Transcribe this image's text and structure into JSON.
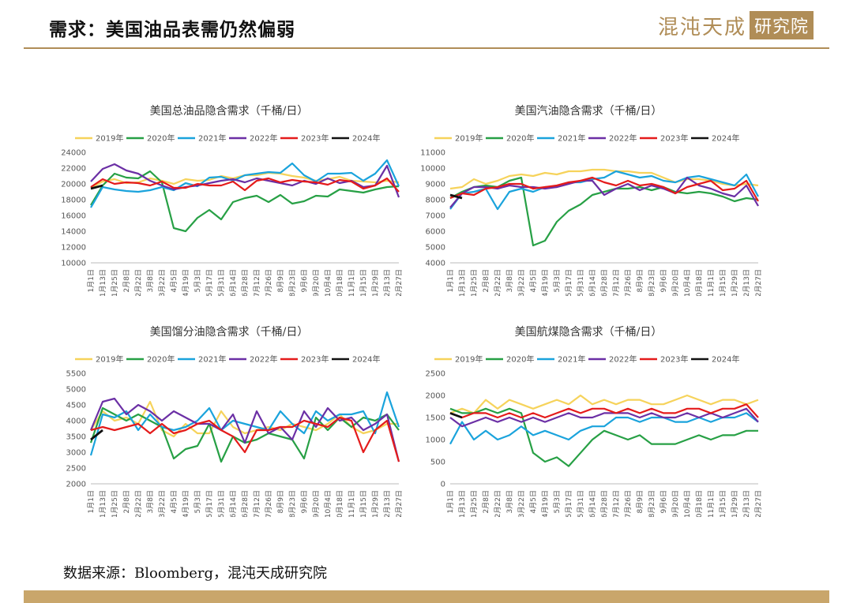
{
  "header": {
    "title": "需求：美国油品表需仍然偏弱",
    "logo_text": "混沌天成",
    "logo_box": "研究院"
  },
  "footer": {
    "source": "数据来源：Bloomberg，混沌天成研究院"
  },
  "colors": {
    "accent": "#b08d57"
  },
  "chart_data": [
    {
      "type": "line",
      "title": "美国总油品隐含需求（千桶/日）",
      "categories": [
        "1月1日",
        "1月13日",
        "1月25日",
        "2月8日",
        "2月22日",
        "3月8日",
        "3月22日",
        "4月5日",
        "4月19日",
        "5月3日",
        "5月17日",
        "5月31日",
        "6月14日",
        "6月28日",
        "7月12日",
        "7月26日",
        "8月9日",
        "8月23日",
        "9月6日",
        "9月20日",
        "10月4日",
        "10月18日",
        "11月1日",
        "11月15日",
        "11月29日",
        "12月13日",
        "12月27日"
      ],
      "ylim": [
        10000,
        24000
      ],
      "yticks": [
        10000,
        12000,
        14000,
        16000,
        18000,
        20000,
        22000,
        24000
      ],
      "series": [
        {
          "name": "2019年",
          "color": "#f6d35b",
          "values": [
            19500,
            20300,
            20600,
            20100,
            20200,
            20700,
            20400,
            20000,
            20600,
            20400,
            20500,
            21000,
            20700,
            21100,
            21100,
            21400,
            21300,
            21000,
            20800,
            20400,
            20600,
            20900,
            20400,
            20300,
            20200,
            20400,
            20200
          ]
        },
        {
          "name": "2020年",
          "color": "#27a045",
          "values": [
            17300,
            19800,
            21300,
            20800,
            20700,
            21600,
            20200,
            14400,
            14000,
            15700,
            16700,
            15500,
            17700,
            18200,
            18500,
            17700,
            18600,
            17500,
            17800,
            18500,
            18400,
            19300,
            19100,
            18900,
            19300,
            19600,
            19700
          ]
        },
        {
          "name": "2021年",
          "color": "#1aa3dc",
          "values": [
            17000,
            19600,
            19300,
            19100,
            19000,
            19200,
            19600,
            19200,
            20100,
            19700,
            20800,
            20900,
            20400,
            21100,
            21300,
            21500,
            21400,
            22600,
            21100,
            20300,
            21300,
            21300,
            21400,
            20400,
            21300,
            23000,
            19700
          ]
        },
        {
          "name": "2022年",
          "color": "#6b2fa5",
          "values": [
            20300,
            21900,
            22500,
            21700,
            21300,
            20400,
            19800,
            19300,
            19600,
            19800,
            20100,
            20400,
            20600,
            20200,
            20700,
            20400,
            20100,
            19800,
            20400,
            20000,
            20700,
            20100,
            20400,
            19600,
            19800,
            22300,
            18300
          ]
        },
        {
          "name": "2023年",
          "color": "#e41b1b",
          "values": [
            19600,
            20600,
            20000,
            20200,
            20100,
            19800,
            20300,
            19500,
            19500,
            20000,
            19800,
            19800,
            20300,
            19200,
            20400,
            20700,
            20200,
            20500,
            20300,
            20200,
            19900,
            20500,
            20300,
            19400,
            19800,
            20700,
            19000
          ]
        },
        {
          "name": "2024年",
          "color": "#111111",
          "values": [
            19400,
            19800,
            null,
            null,
            null,
            null,
            null,
            null,
            null,
            null,
            null,
            null,
            null,
            null,
            null,
            null,
            null,
            null,
            null,
            null,
            null,
            null,
            null,
            null,
            null,
            null,
            null
          ]
        }
      ]
    },
    {
      "type": "line",
      "title": "美国汽油隐含需求（千桶/日）",
      "categories": [
        "1月1日",
        "1月13日",
        "1月25日",
        "2月8日",
        "2月22日",
        "3月8日",
        "3月22日",
        "4月5日",
        "4月19日",
        "5月3日",
        "5月17日",
        "5月31日",
        "6月14日",
        "6月28日",
        "7月12日",
        "7月26日",
        "8月9日",
        "8月23日",
        "9月6日",
        "9月20日",
        "10月4日",
        "10月18日",
        "11月1日",
        "11月15日",
        "11月29日",
        "12月13日",
        "12月27日"
      ],
      "ylim": [
        4000,
        11000
      ],
      "yticks": [
        4000,
        5000,
        6000,
        7000,
        8000,
        9000,
        10000,
        11000
      ],
      "series": [
        {
          "name": "2019年",
          "color": "#f6d35b",
          "values": [
            8700,
            8800,
            9300,
            9000,
            9200,
            9500,
            9600,
            9500,
            9700,
            9600,
            9800,
            9800,
            9900,
            9900,
            9800,
            9800,
            9700,
            9700,
            9400,
            9100,
            9300,
            9300,
            9200,
            9000,
            8900,
            9000,
            8900
          ]
        },
        {
          "name": "2020年",
          "color": "#27a045",
          "values": [
            8100,
            8500,
            8800,
            8900,
            8800,
            9200,
            9400,
            5100,
            5400,
            6600,
            7300,
            7700,
            8300,
            8500,
            8700,
            8700,
            8800,
            8600,
            8800,
            8500,
            8400,
            8500,
            8400,
            8200,
            7900,
            8100,
            8000
          ]
        },
        {
          "name": "2021年",
          "color": "#1aa3dc",
          "values": [
            7400,
            8400,
            8500,
            8700,
            7400,
            8500,
            8700,
            8500,
            8800,
            8800,
            9100,
            9100,
            9300,
            9400,
            9800,
            9600,
            9400,
            9500,
            9200,
            9100,
            9400,
            9500,
            9300,
            9100,
            8900,
            9600,
            8200
          ]
        },
        {
          "name": "2022年",
          "color": "#6b2fa5",
          "values": [
            7500,
            8400,
            8800,
            8800,
            8700,
            8900,
            8800,
            8800,
            8700,
            8800,
            9000,
            9200,
            9200,
            8300,
            8700,
            9000,
            8600,
            8900,
            8700,
            8400,
            9400,
            8900,
            8700,
            8400,
            8200,
            8900,
            7600
          ]
        },
        {
          "name": "2023年",
          "color": "#e41b1b",
          "values": [
            8100,
            8400,
            8300,
            8700,
            8800,
            9000,
            9000,
            8700,
            8800,
            8900,
            9100,
            9200,
            9400,
            9100,
            8900,
            9200,
            8900,
            9000,
            8800,
            8400,
            8800,
            9000,
            9200,
            8600,
            8700,
            9200,
            7900
          ]
        },
        {
          "name": "2024年",
          "color": "#111111",
          "values": [
            8300,
            8100,
            null,
            null,
            null,
            null,
            null,
            null,
            null,
            null,
            null,
            null,
            null,
            null,
            null,
            null,
            null,
            null,
            null,
            null,
            null,
            null,
            null,
            null,
            null,
            null,
            null
          ]
        }
      ]
    },
    {
      "type": "line",
      "title": "美国馏分油隐含需求（千桶/日）",
      "categories": [
        "1月1日",
        "1月13日",
        "1月25日",
        "2月8日",
        "2月22日",
        "3月8日",
        "3月22日",
        "4月5日",
        "4月19日",
        "5月3日",
        "5月17日",
        "5月31日",
        "6月14日",
        "6月28日",
        "7月12日",
        "7月26日",
        "8月9日",
        "8月23日",
        "9月6日",
        "9月20日",
        "10月4日",
        "10月18日",
        "11月1日",
        "11月15日",
        "11月29日",
        "12月13日",
        "12月27日"
      ],
      "ylim": [
        2000,
        5500
      ],
      "yticks": [
        2000,
        2500,
        3000,
        3500,
        4000,
        4500,
        5000,
        5500
      ],
      "series": [
        {
          "name": "2019年",
          "color": "#f6d35b",
          "values": [
            3700,
            4300,
            4000,
            4100,
            3900,
            4600,
            3700,
            3500,
            3900,
            3600,
            3600,
            4300,
            3800,
            3600,
            3700,
            3800,
            3700,
            3900,
            3800,
            3700,
            3900,
            4200,
            3800,
            3600,
            3700,
            3900,
            3900
          ]
        },
        {
          "name": "2020年",
          "color": "#27a045",
          "values": [
            3300,
            4400,
            4200,
            4000,
            4200,
            4000,
            3800,
            2800,
            3100,
            3200,
            3900,
            2700,
            3500,
            3300,
            3400,
            3600,
            3500,
            3400,
            2800,
            4100,
            3700,
            4100,
            3800,
            4100,
            4000,
            4200,
            3700
          ]
        },
        {
          "name": "2021年",
          "color": "#1aa3dc",
          "values": [
            2900,
            4200,
            4100,
            4300,
            3700,
            4200,
            3800,
            3700,
            3800,
            4000,
            4400,
            3700,
            4000,
            3900,
            3800,
            3700,
            4300,
            3900,
            3600,
            4300,
            4000,
            4200,
            4200,
            4300,
            3600,
            4900,
            3800
          ]
        },
        {
          "name": "2022年",
          "color": "#6b2fa5",
          "values": [
            3700,
            4600,
            4700,
            4200,
            4500,
            4300,
            4000,
            4300,
            4100,
            3900,
            3900,
            3700,
            4200,
            3300,
            4300,
            3600,
            3800,
            3400,
            4300,
            3800,
            4400,
            4000,
            4100,
            3700,
            3900,
            4200,
            2700
          ]
        },
        {
          "name": "2023年",
          "color": "#e41b1b",
          "values": [
            3700,
            3800,
            3700,
            3800,
            3900,
            3600,
            3900,
            3600,
            3700,
            3900,
            4000,
            3700,
            3500,
            3000,
            3700,
            3700,
            3800,
            3800,
            4000,
            3900,
            3800,
            4100,
            4000,
            3000,
            3700,
            4000,
            2700
          ]
        },
        {
          "name": "2024年",
          "color": "#111111",
          "values": [
            3400,
            3700,
            null,
            null,
            null,
            null,
            null,
            null,
            null,
            null,
            null,
            null,
            null,
            null,
            null,
            null,
            null,
            null,
            null,
            null,
            null,
            null,
            null,
            null,
            null,
            null,
            null
          ]
        }
      ]
    },
    {
      "type": "line",
      "title": "美国航煤隐含需求（千桶/日）",
      "categories": [
        "1月1日",
        "1月13日",
        "1月25日",
        "2月8日",
        "2月22日",
        "3月8日",
        "3月22日",
        "4月5日",
        "4月19日",
        "5月3日",
        "5月17日",
        "5月31日",
        "6月14日",
        "6月28日",
        "7月12日",
        "7月26日",
        "8月9日",
        "8月23日",
        "9月6日",
        "9月20日",
        "10月4日",
        "10月18日",
        "11月1日",
        "11月15日",
        "11月29日",
        "12月13日",
        "12月27日"
      ],
      "ylim": [
        0,
        2500
      ],
      "yticks": [
        0,
        500,
        1000,
        1500,
        2000,
        2500
      ],
      "series": [
        {
          "name": "2019年",
          "color": "#f6d35b",
          "values": [
            1600,
            1700,
            1600,
            1900,
            1700,
            1900,
            1800,
            1700,
            1800,
            1900,
            1800,
            2000,
            1800,
            1900,
            1800,
            1900,
            1900,
            1800,
            1800,
            1900,
            2000,
            1900,
            1800,
            1900,
            1900,
            1800,
            1900
          ]
        },
        {
          "name": "2020年",
          "color": "#27a045",
          "values": [
            1700,
            1600,
            1600,
            1700,
            1600,
            1700,
            1600,
            700,
            500,
            600,
            400,
            700,
            1000,
            1200,
            1100,
            1000,
            1100,
            900,
            900,
            900,
            1000,
            1100,
            1000,
            1100,
            1100,
            1200,
            1200
          ]
        },
        {
          "name": "2021年",
          "color": "#1aa3dc",
          "values": [
            900,
            1400,
            1000,
            1200,
            1000,
            1100,
            1300,
            1100,
            1200,
            1100,
            1000,
            1200,
            1300,
            1300,
            1500,
            1500,
            1400,
            1500,
            1500,
            1400,
            1400,
            1500,
            1400,
            1500,
            1500,
            1600,
            1400
          ]
        },
        {
          "name": "2022年",
          "color": "#6b2fa5",
          "values": [
            1500,
            1300,
            1400,
            1500,
            1400,
            1500,
            1400,
            1500,
            1400,
            1500,
            1600,
            1500,
            1500,
            1600,
            1600,
            1600,
            1500,
            1600,
            1500,
            1500,
            1600,
            1500,
            1600,
            1500,
            1600,
            1700,
            1400
          ]
        },
        {
          "name": "2023年",
          "color": "#e41b1b",
          "values": [
            1600,
            1500,
            1600,
            1600,
            1500,
            1600,
            1500,
            1600,
            1500,
            1600,
            1700,
            1600,
            1700,
            1700,
            1600,
            1700,
            1600,
            1700,
            1600,
            1600,
            1700,
            1700,
            1600,
            1700,
            1700,
            1800,
            1500
          ]
        },
        {
          "name": "2024年",
          "color": "#111111",
          "values": [
            1600,
            1500,
            null,
            null,
            null,
            null,
            null,
            null,
            null,
            null,
            null,
            null,
            null,
            null,
            null,
            null,
            null,
            null,
            null,
            null,
            null,
            null,
            null,
            null,
            null,
            null,
            null
          ]
        }
      ]
    }
  ]
}
